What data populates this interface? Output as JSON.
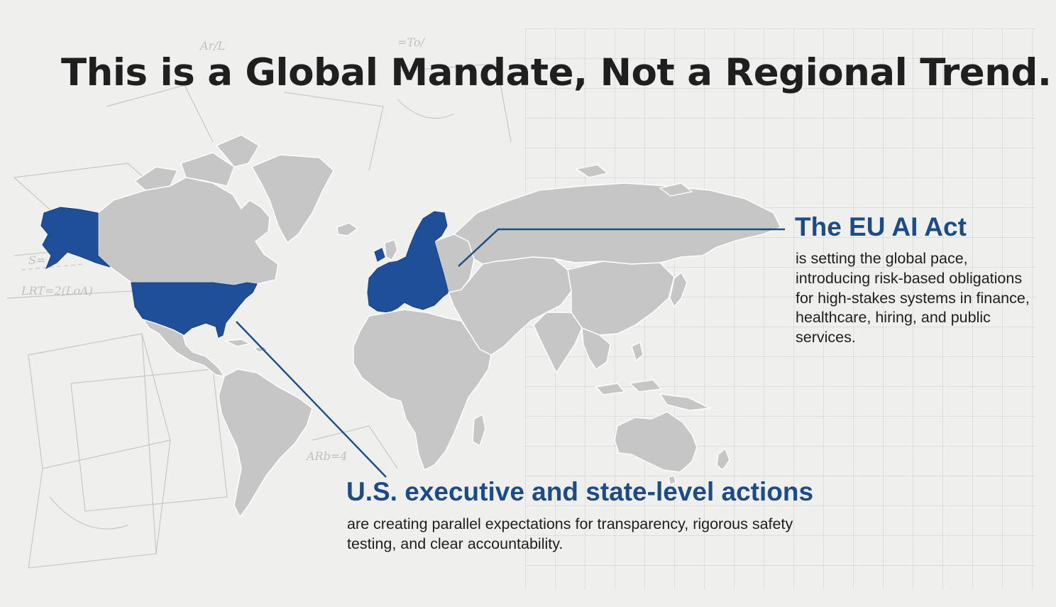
{
  "slide": {
    "title": "This is a Global Mandate, Not a Regional Trend."
  },
  "callouts": {
    "eu": {
      "heading": "The EU AI Act",
      "body": "is setting the global pace, introducing risk-based obligations for high-stakes systems in finance, healthcare, hiring, and public services."
    },
    "us": {
      "heading": "U.S. executive and state-level actions",
      "body": "are creating parallel expectations for transparency, rigorous safety testing, and clear accountability."
    }
  },
  "map": {
    "highlighted_regions": [
      "alaska",
      "contiguous-united-states",
      "european-union"
    ],
    "highlight_color": "#1e4f98",
    "land_color": "#c6c6c6",
    "callout_line_color": "#1a4c8c"
  }
}
